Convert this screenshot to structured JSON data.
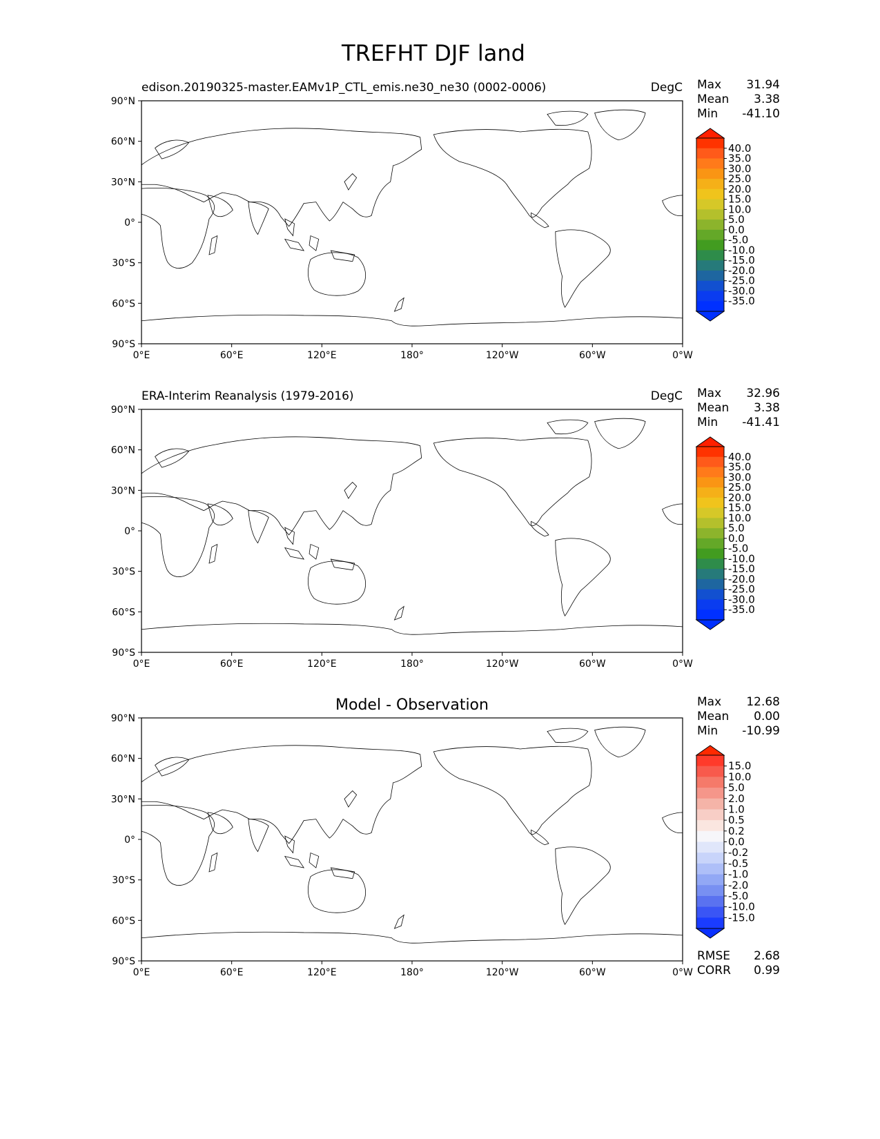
{
  "figure_title": "TREFHT DJF land",
  "lat_ticks": [
    "90°N",
    "60°N",
    "30°N",
    "0°",
    "30°S",
    "60°S",
    "90°S"
  ],
  "lon_ticks": [
    "0°E",
    "60°E",
    "120°E",
    "180°",
    "120°W",
    "60°W",
    "0°W"
  ],
  "panels": [
    {
      "id": "model",
      "title": "",
      "left_label": "edison.20190325-master.EAMv1P_CTL_emis.ne30_ne30 (0002-0006)",
      "right_label": "DegC",
      "stats": {
        "max_label": "Max",
        "max": "31.94",
        "mean_label": "Mean",
        "mean": "3.38",
        "min_label": "Min",
        "min": "-41.10"
      },
      "colorbar": {
        "ticks": [
          "40.0",
          "35.0",
          "30.0",
          "25.0",
          "20.0",
          "15.0",
          "10.0",
          "5.0",
          "0.0",
          "-5.0",
          "-10.0",
          "-15.0",
          "-20.0",
          "-25.0",
          "-30.0",
          "-35.0"
        ],
        "colors": [
          "#ff3300",
          "#ff5a1a",
          "#ff7a1a",
          "#fa9514",
          "#f5b018",
          "#f0c41c",
          "#d6c828",
          "#b4c02c",
          "#8cb42c",
          "#64a828",
          "#429c20",
          "#2e8c4a",
          "#267a7a",
          "#1e66a0",
          "#1250d0",
          "#0a3cf0",
          "#0030ff"
        ],
        "over": "#ff2000",
        "under": "#0030ff"
      }
    },
    {
      "id": "obs",
      "title": "",
      "left_label": "ERA-Interim Reanalysis (1979-2016)",
      "right_label": "DegC",
      "stats": {
        "max_label": "Max",
        "max": "32.96",
        "mean_label": "Mean",
        "mean": "3.38",
        "min_label": "Min",
        "min": "-41.41"
      },
      "colorbar": {
        "ticks": [
          "40.0",
          "35.0",
          "30.0",
          "25.0",
          "20.0",
          "15.0",
          "10.0",
          "5.0",
          "0.0",
          "-5.0",
          "-10.0",
          "-15.0",
          "-20.0",
          "-25.0",
          "-30.0",
          "-35.0"
        ],
        "colors": [
          "#ff3300",
          "#ff5a1a",
          "#ff7a1a",
          "#fa9514",
          "#f5b018",
          "#f0c41c",
          "#d6c828",
          "#b4c02c",
          "#8cb42c",
          "#64a828",
          "#429c20",
          "#2e8c4a",
          "#267a7a",
          "#1e66a0",
          "#1250d0",
          "#0a3cf0",
          "#0030ff"
        ],
        "over": "#ff2000",
        "under": "#0030ff"
      }
    },
    {
      "id": "diff",
      "title": "Model - Observation",
      "left_label": "",
      "right_label": "",
      "stats": {
        "max_label": "Max",
        "max": "12.68",
        "mean_label": "Mean",
        "mean": "0.00",
        "min_label": "Min",
        "min": "-10.99"
      },
      "colorbar": {
        "ticks": [
          "15.0",
          "10.0",
          "5.0",
          "2.0",
          "1.0",
          "0.5",
          "0.2",
          "0.0",
          "-0.2",
          "-0.5",
          "-1.0",
          "-2.0",
          "-5.0",
          "-10.0",
          "-15.0"
        ],
        "colors": [
          "#ff3a2a",
          "#f85a4c",
          "#f57a6a",
          "#f5968a",
          "#f5b4a8",
          "#f8cec6",
          "#fae6e0",
          "#f6f6fa",
          "#e0e6fa",
          "#c8d4fa",
          "#aebff8",
          "#92a8f5",
          "#7890f2",
          "#5a72f0",
          "#3a55f5",
          "#1a3cff"
        ],
        "over": "#ff2a00",
        "under": "#0a30ff"
      },
      "metrics": {
        "rmse_label": "RMSE",
        "rmse": "2.68",
        "corr_label": "CORR",
        "corr": "0.99"
      }
    }
  ],
  "chart_data": [
    {
      "type": "heatmap",
      "title": "TREFHT DJF land",
      "subtitle": "edison.20190325-master.EAMv1P_CTL_emis.ne30_ne30 (0002-0006)",
      "units": "DegC",
      "projection": "equirectangular, centered 180°",
      "lat_range": [
        -90,
        90
      ],
      "lon_range": [
        0,
        360
      ],
      "levels": [
        -35,
        -30,
        -25,
        -20,
        -15,
        -10,
        -5,
        0,
        5,
        10,
        15,
        20,
        25,
        30,
        35,
        40
      ],
      "stats": {
        "max": 31.94,
        "mean": 3.38,
        "min": -41.1
      }
    },
    {
      "type": "heatmap",
      "title": "TREFHT DJF land",
      "subtitle": "ERA-Interim Reanalysis (1979-2016)",
      "units": "DegC",
      "lat_range": [
        -90,
        90
      ],
      "lon_range": [
        0,
        360
      ],
      "levels": [
        -35,
        -30,
        -25,
        -20,
        -15,
        -10,
        -5,
        0,
        5,
        10,
        15,
        20,
        25,
        30,
        35,
        40
      ],
      "stats": {
        "max": 32.96,
        "mean": 3.38,
        "min": -41.41
      }
    },
    {
      "type": "heatmap",
      "title": "Model - Observation",
      "lat_range": [
        -90,
        90
      ],
      "lon_range": [
        0,
        360
      ],
      "levels": [
        -15,
        -10,
        -5,
        -2,
        -1,
        -0.5,
        -0.2,
        0,
        0.2,
        0.5,
        1,
        2,
        5,
        10,
        15
      ],
      "stats": {
        "max": 12.68,
        "mean": 0.0,
        "min": -10.99
      },
      "rmse": 2.68,
      "corr": 0.99
    }
  ]
}
